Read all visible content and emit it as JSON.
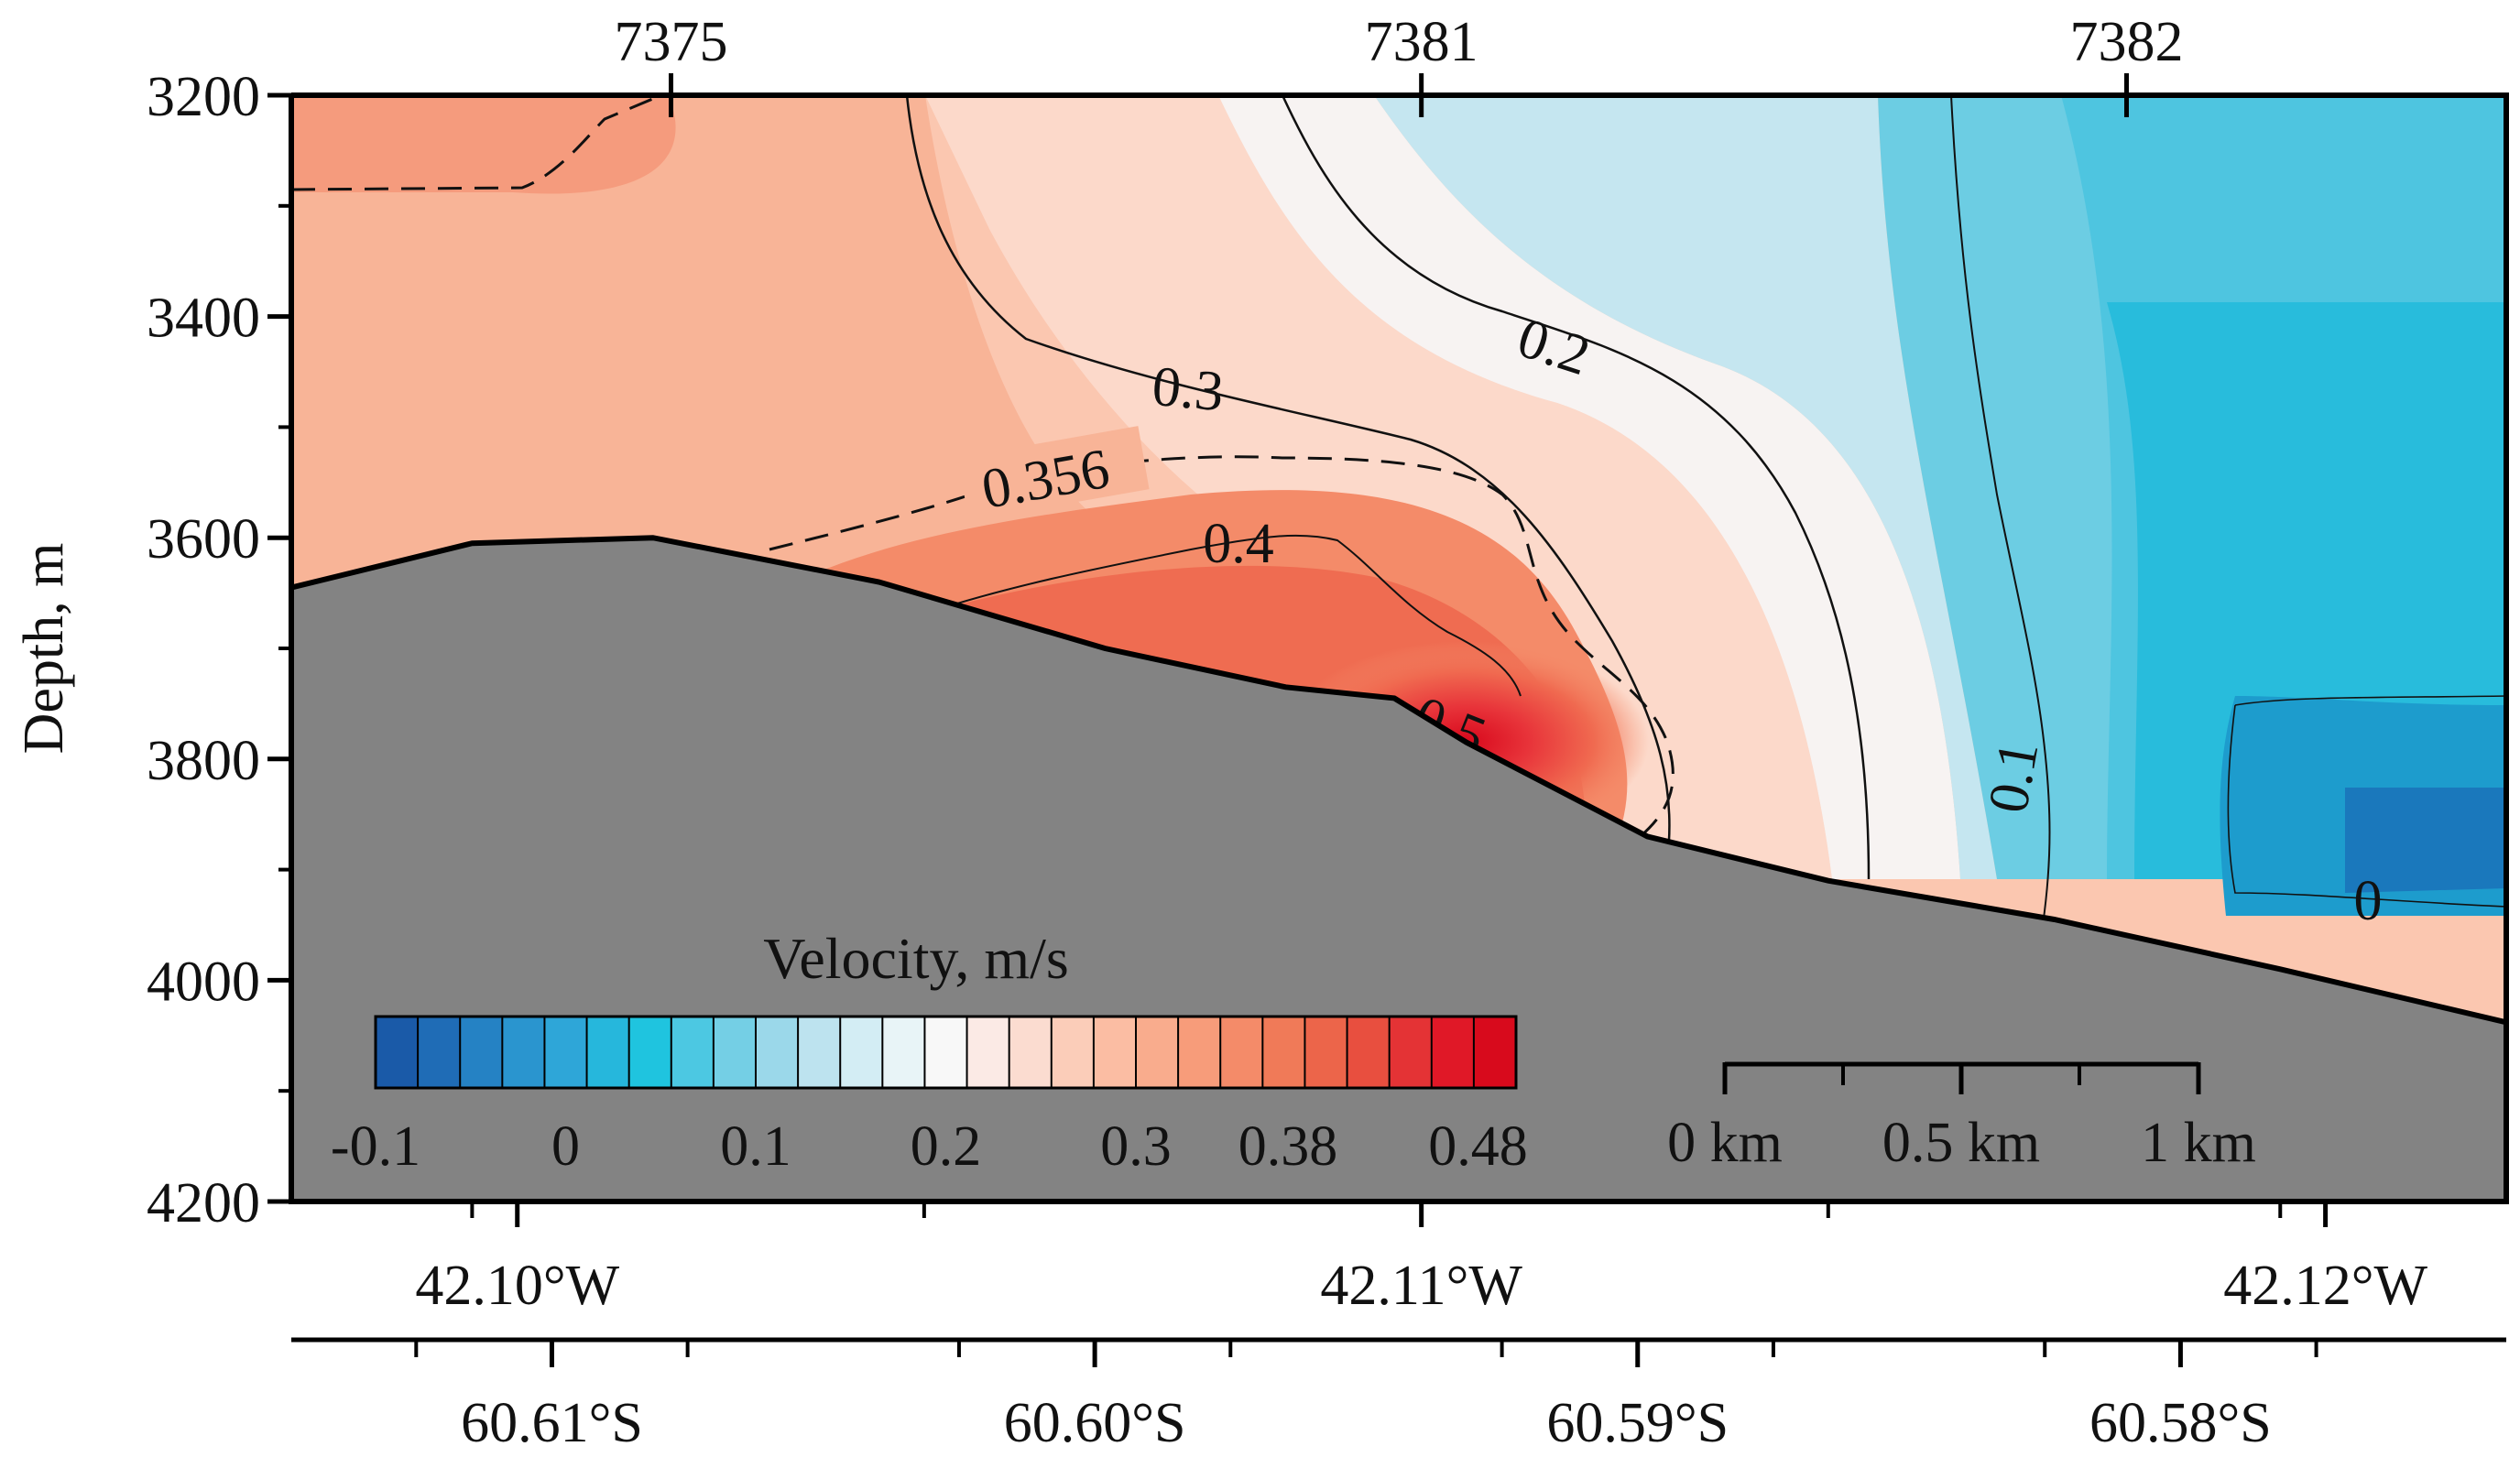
{
  "chart_data": {
    "type": "heatmap",
    "title": "",
    "ylabel": "Depth, m",
    "ylim": [
      4200,
      3200
    ],
    "y_ticks": [
      3200,
      3400,
      3600,
      3800,
      4000,
      4200
    ],
    "y_tick_labels": [
      "3200",
      "3400",
      "3600",
      "3800",
      "4000",
      "4200"
    ],
    "x_range_lon": [
      42.0975,
      42.122
    ],
    "lon_ticks": [
      42.1,
      42.11,
      42.12
    ],
    "lon_tick_labels": [
      "42.10°W",
      "42.11°W",
      "42.12°W"
    ],
    "lat_range": [
      60.6148,
      60.574
    ],
    "lat_ticks": [
      60.61,
      60.6,
      60.59,
      60.58
    ],
    "lat_tick_labels": [
      "60.61°S",
      "60.60°S",
      "60.59°S",
      "60.58°S"
    ],
    "stations": [
      {
        "label": "7375",
        "lon": 42.1017
      },
      {
        "label": "7381",
        "lon": 42.11
      },
      {
        "label": "7382",
        "lon": 42.1178
      }
    ],
    "bottom_profile": {
      "lon": [
        42.0975,
        42.0995,
        42.1015,
        42.104,
        42.1065,
        42.1085,
        42.1097,
        42.1105,
        42.1125,
        42.1145,
        42.117,
        42.1195,
        42.122
      ],
      "depth": [
        3645,
        3605,
        3600,
        3640,
        3700,
        3735,
        3745,
        3785,
        3870,
        3910,
        3945,
        3990,
        4038
      ]
    },
    "contours": [
      {
        "label": "0.2",
        "style": "solid"
      },
      {
        "label": "0.3",
        "style": "solid"
      },
      {
        "label": "0.356",
        "style": "dashed"
      },
      {
        "label": "0.4",
        "style": "solid"
      },
      {
        "label": "0.5",
        "style": "solid"
      },
      {
        "label": "0.1",
        "style": "solid"
      },
      {
        "label": "0",
        "style": "solid"
      }
    ],
    "colorbar": {
      "title": "Velocity, m/s",
      "range": [
        -0.1,
        0.5
      ],
      "tick_labels": [
        "-0.1",
        "0",
        "0.1",
        "0.2",
        "0.3",
        "0.38",
        "0.48"
      ],
      "tick_values": [
        -0.1,
        0,
        0.1,
        0.2,
        0.3,
        0.38,
        0.48
      ],
      "colors": [
        "#1a5aa8",
        "#1f6cb6",
        "#2582c4",
        "#2a95cf",
        "#2ea6d8",
        "#26b7dc",
        "#1fc4df",
        "#4cc8e2",
        "#74cfe5",
        "#9bd8ea",
        "#bde3ef",
        "#d3edf4",
        "#e8f4f7",
        "#f8f8f8",
        "#fbeae5",
        "#fbdcd0",
        "#fbcdb9",
        "#fbbda3",
        "#f9ac8d",
        "#f79c7a",
        "#f48b69",
        "#f07a58",
        "#ec654a",
        "#e84f3f",
        "#e43335",
        "#e01827",
        "#d80a1c"
      ]
    },
    "scale_bar": {
      "labels": [
        "0 km",
        "0.5 km",
        "1 km"
      ]
    }
  }
}
